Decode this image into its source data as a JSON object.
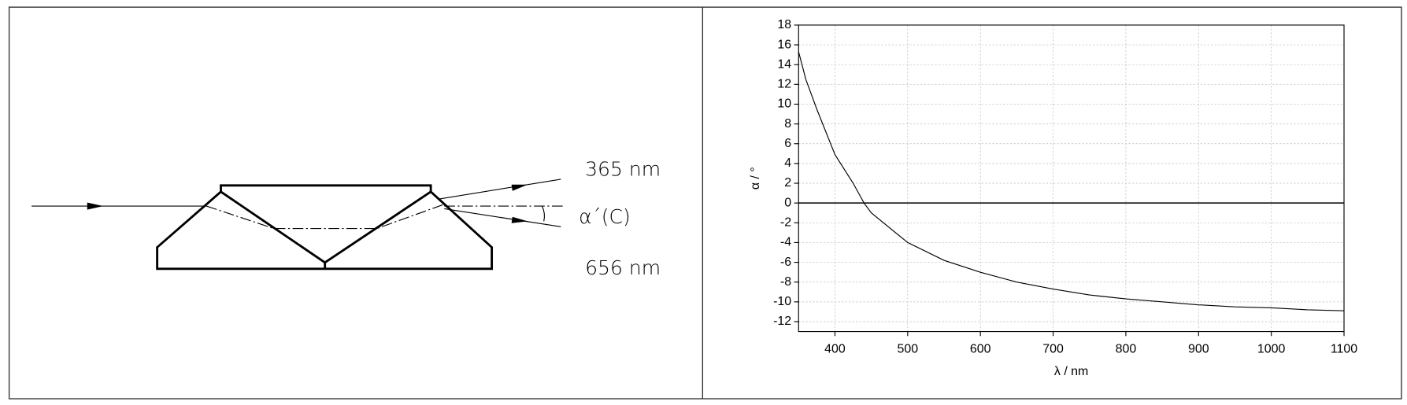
{
  "diagram": {
    "labels": [
      "365 nm",
      "α´(C)",
      "656 nm"
    ]
  },
  "chart_data": {
    "type": "line",
    "x_label": "λ / nm",
    "y_label": "α / °",
    "x": [
      350,
      360,
      375,
      400,
      425,
      440,
      450,
      500,
      550,
      600,
      650,
      700,
      750,
      800,
      850,
      900,
      950,
      1000,
      1050,
      1100
    ],
    "series": [
      {
        "color": "#000000",
        "values": [
          15.3,
          12.5,
          9.5,
          4.9,
          2,
          0,
          -1,
          -4,
          -5.8,
          -7,
          -8,
          -8.7,
          -9.3,
          -9.7,
          -10,
          -10.3,
          -10.5,
          -10.6,
          -10.8,
          -10.9
        ]
      }
    ],
    "xlim": [
      350,
      1100
    ],
    "ylim": [
      -13,
      18
    ],
    "xticks": [
      400,
      500,
      600,
      700,
      800,
      900,
      1000,
      1100
    ],
    "yticks": [
      -12,
      -10,
      -8,
      -6,
      -4,
      -2,
      0,
      2,
      4,
      6,
      8,
      10,
      12,
      14,
      16,
      18
    ],
    "grid": true
  }
}
